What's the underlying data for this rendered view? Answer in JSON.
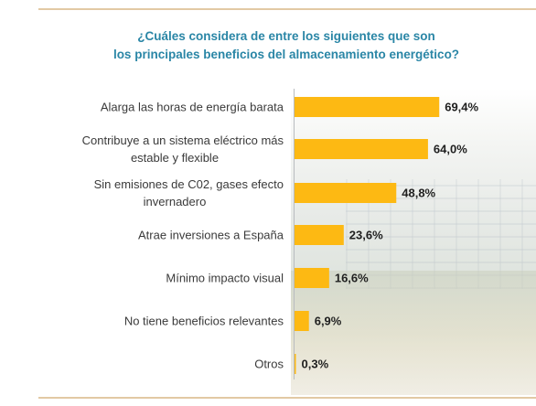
{
  "chart_data": {
    "type": "bar",
    "orientation": "horizontal",
    "title_lines": [
      "¿Cuáles considera de entre los siguientes que son",
      "los principales beneficios del almacenamiento energético?"
    ],
    "categories": [
      [
        "Alarga las horas de energía barata"
      ],
      [
        "Contribuye a un sistema eléctrico más",
        "estable y flexible"
      ],
      [
        "Sin emisiones de C02, gases efecto",
        "invernadero"
      ],
      [
        "Atrae inversiones a España"
      ],
      [
        "Mínimo impacto visual"
      ],
      [
        "No tiene beneficios relevantes"
      ],
      [
        "Otros"
      ]
    ],
    "values": [
      69.4,
      64.0,
      48.8,
      23.6,
      16.6,
      6.9,
      0.3
    ],
    "value_labels": [
      "69,4%",
      "64,0%",
      "48,8%",
      "23,6%",
      "16,6%",
      "6,9%",
      "0,3%"
    ],
    "unit": "%",
    "xlim": [
      0,
      100
    ],
    "bar_color": "#fdb913",
    "grid": false,
    "legend": "none"
  }
}
